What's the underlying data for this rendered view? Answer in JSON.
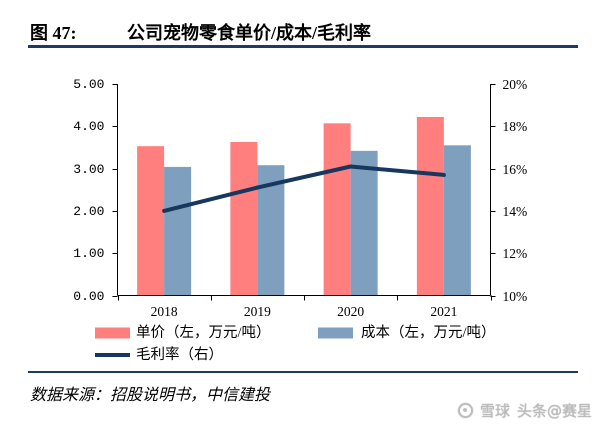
{
  "figure": {
    "label": "图 47:",
    "title": "公司宠物零食单价/成本/毛利率",
    "rule_color": "#1f3864"
  },
  "chart_data": {
    "type": "bar",
    "categories": [
      "2018",
      "2019",
      "2020",
      "2021"
    ],
    "series": [
      {
        "name": "单价（左，万元/吨）",
        "type": "bar",
        "axis": "left",
        "color": "#ff7f7f",
        "values": [
          3.53,
          3.63,
          4.07,
          4.22
        ]
      },
      {
        "name": "成本（左，万元/吨）",
        "type": "bar",
        "axis": "left",
        "color": "#7f9fbf",
        "values": [
          3.04,
          3.08,
          3.42,
          3.55
        ]
      },
      {
        "name": "毛利率（右）",
        "type": "line",
        "axis": "right",
        "color": "#17375e",
        "values": [
          14.0,
          15.1,
          16.1,
          15.7
        ]
      }
    ],
    "y_left": {
      "range": [
        0,
        5
      ],
      "tick_labels": [
        "0.00",
        "1.00",
        "2.00",
        "3.00",
        "4.00",
        "5.00"
      ]
    },
    "y_right": {
      "range": [
        10,
        20
      ],
      "tick_labels": [
        "10%",
        "12%",
        "14%",
        "16%",
        "18%",
        "20%"
      ]
    },
    "grid": false,
    "legend_position": "bottom"
  },
  "source": "数据来源：招股说明书，中信建投",
  "watermark": {
    "brand": "雪球",
    "handle": "头条@赛星"
  }
}
